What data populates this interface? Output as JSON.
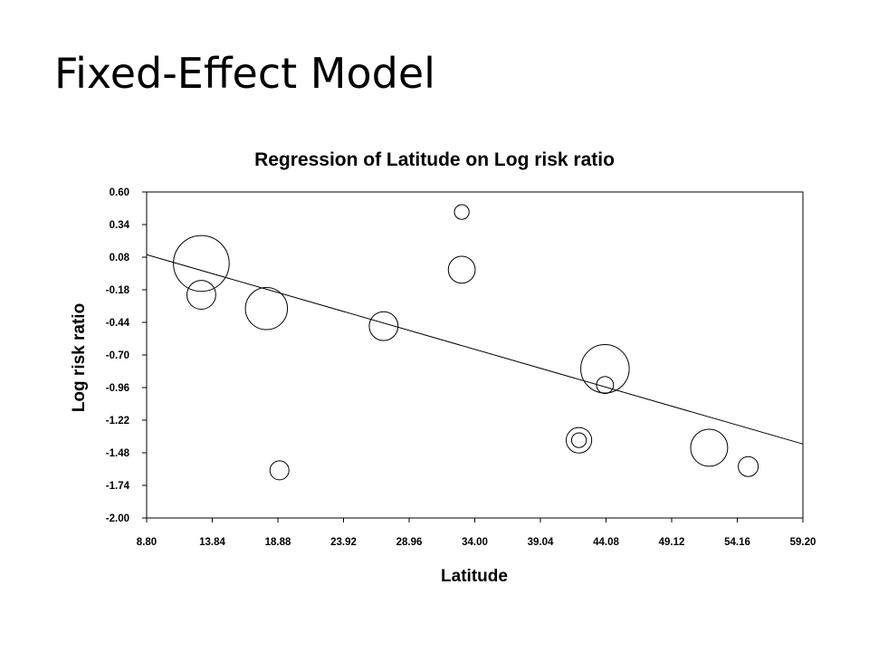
{
  "slide": {
    "title": "Fixed-Effect Model"
  },
  "chart_data": {
    "type": "scatter",
    "title": "Regression of Latitude on Log risk ratio",
    "xlabel": "Latitude",
    "ylabel": "Log risk ratio",
    "xlim": [
      8.8,
      59.2
    ],
    "ylim": [
      -2.0,
      0.6
    ],
    "x_ticks": [
      "8.80",
      "13.84",
      "18.88",
      "23.92",
      "28.96",
      "34.00",
      "39.04",
      "44.08",
      "49.12",
      "54.16",
      "59.20"
    ],
    "y_ticks": [
      "0.60",
      "0.34",
      "0.08",
      "-0.18",
      "-0.44",
      "-0.70",
      "-0.96",
      "-1.22",
      "-1.48",
      "-1.74",
      "-2.00"
    ],
    "grid": false,
    "marker": "bubble (open circle, size = study weight)",
    "points": [
      {
        "x": 13,
        "y": 0.03,
        "weight": 8.6
      },
      {
        "x": 13,
        "y": -0.22,
        "weight": 2.3
      },
      {
        "x": 18,
        "y": -0.33,
        "weight": 4.9
      },
      {
        "x": 19,
        "y": -1.62,
        "weight": 1.0
      },
      {
        "x": 27,
        "y": -0.47,
        "weight": 2.3
      },
      {
        "x": 33,
        "y": 0.44,
        "weight": 0.6
      },
      {
        "x": 33,
        "y": -0.02,
        "weight": 2.0
      },
      {
        "x": 42,
        "y": -1.38,
        "weight": 0.6
      },
      {
        "x": 42,
        "y": -1.38,
        "weight": 1.8
      },
      {
        "x": 44,
        "y": -0.81,
        "weight": 6.5
      },
      {
        "x": 44,
        "y": -0.94,
        "weight": 0.8
      },
      {
        "x": 52,
        "y": -1.44,
        "weight": 3.8
      },
      {
        "x": 55,
        "y": -1.59,
        "weight": 1.1
      }
    ],
    "regression_line": {
      "x": [
        8.8,
        59.2
      ],
      "y": [
        0.1,
        -1.41
      ]
    },
    "colors": {
      "stroke": "#000000",
      "background": "#ffffff"
    }
  }
}
